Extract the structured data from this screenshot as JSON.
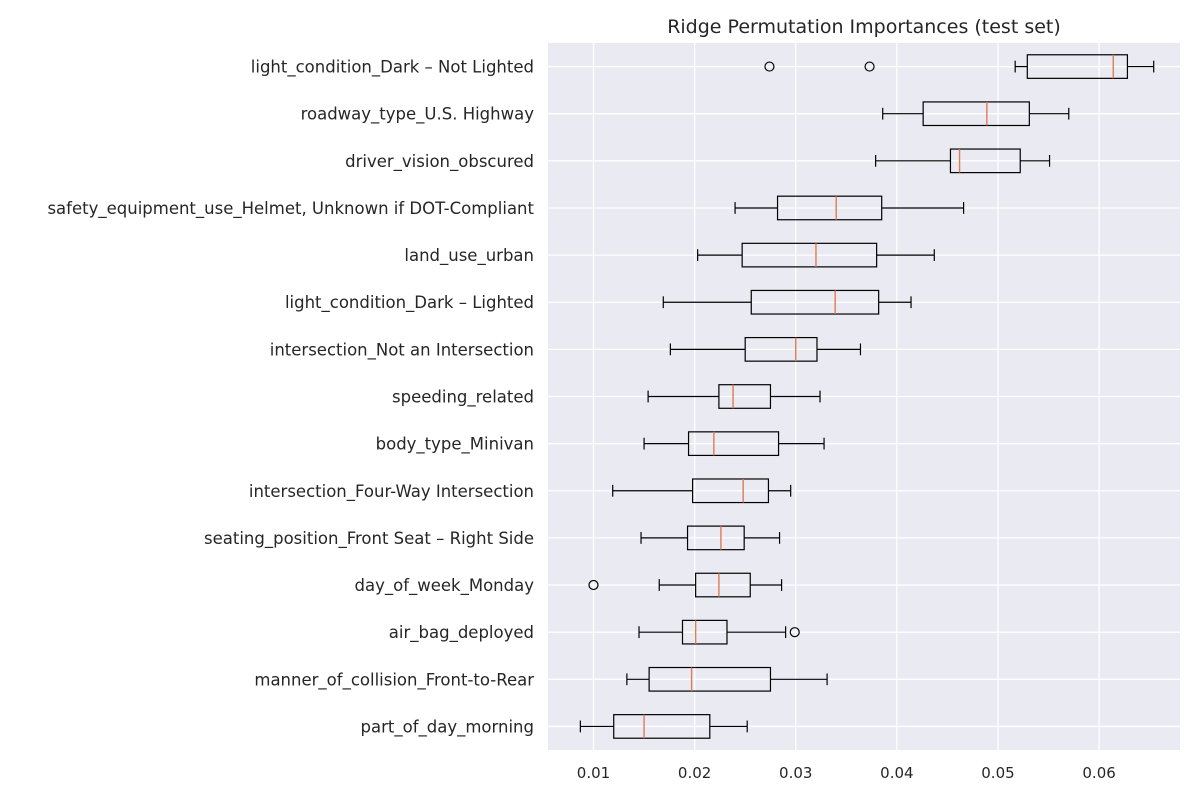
{
  "chart_data": {
    "type": "boxplot",
    "orientation": "horizontal",
    "title": "Ridge Permutation Importances (test set)",
    "xlabel": "",
    "ylabel": "",
    "xlim": [
      0.0055,
      0.068
    ],
    "xticks": [
      0.01,
      0.02,
      0.03,
      0.04,
      0.05,
      0.06
    ],
    "xtick_labels": [
      "0.01",
      "0.02",
      "0.03",
      "0.04",
      "0.05",
      "0.06"
    ],
    "grid": true,
    "style": "seaborn-darkgrid",
    "colors": {
      "axes_background": "#eaeaf2",
      "grid": "#ffffff",
      "box_edge": "#000000",
      "median": "#e07b54",
      "text": "#262626"
    },
    "categories": [
      "light_condition_Dark – Not Lighted",
      "roadway_type_U.S. Highway",
      "driver_vision_obscured",
      "safety_equipment_use_Helmet, Unknown if DOT-Compliant",
      "land_use_urban",
      "light_condition_Dark – Lighted",
      "intersection_Not an Intersection",
      "speeding_related",
      "body_type_Minivan",
      "intersection_Four-Way Intersection",
      "seating_position_Front Seat – Right Side",
      "day_of_week_Monday",
      "air_bag_deployed",
      "manner_of_collision_Front-to-Rear",
      "part_of_day_morning"
    ],
    "boxes": [
      {
        "whisker_low": 0.0517,
        "q1": 0.0529,
        "median": 0.0614,
        "q3": 0.0628,
        "whisker_high": 0.0654,
        "outliers": [
          0.0274,
          0.0373
        ]
      },
      {
        "whisker_low": 0.0386,
        "q1": 0.0426,
        "median": 0.0489,
        "q3": 0.0531,
        "whisker_high": 0.057,
        "outliers": []
      },
      {
        "whisker_low": 0.0379,
        "q1": 0.0453,
        "median": 0.0462,
        "q3": 0.0522,
        "whisker_high": 0.0551,
        "outliers": []
      },
      {
        "whisker_low": 0.024,
        "q1": 0.0282,
        "median": 0.034,
        "q3": 0.0385,
        "whisker_high": 0.0466,
        "outliers": []
      },
      {
        "whisker_low": 0.0203,
        "q1": 0.0247,
        "median": 0.032,
        "q3": 0.038,
        "whisker_high": 0.0437,
        "outliers": []
      },
      {
        "whisker_low": 0.0169,
        "q1": 0.0256,
        "median": 0.0339,
        "q3": 0.0382,
        "whisker_high": 0.0414,
        "outliers": []
      },
      {
        "whisker_low": 0.0176,
        "q1": 0.025,
        "median": 0.03,
        "q3": 0.0321,
        "whisker_high": 0.0364,
        "outliers": []
      },
      {
        "whisker_low": 0.0154,
        "q1": 0.0224,
        "median": 0.0238,
        "q3": 0.0275,
        "whisker_high": 0.0324,
        "outliers": []
      },
      {
        "whisker_low": 0.015,
        "q1": 0.0194,
        "median": 0.0219,
        "q3": 0.0283,
        "whisker_high": 0.0328,
        "outliers": []
      },
      {
        "whisker_low": 0.0119,
        "q1": 0.0198,
        "median": 0.0248,
        "q3": 0.0273,
        "whisker_high": 0.0295,
        "outliers": []
      },
      {
        "whisker_low": 0.0147,
        "q1": 0.0193,
        "median": 0.0226,
        "q3": 0.0249,
        "whisker_high": 0.0284,
        "outliers": []
      },
      {
        "whisker_low": 0.0165,
        "q1": 0.0201,
        "median": 0.0224,
        "q3": 0.0255,
        "whisker_high": 0.0286,
        "outliers": [
          0.01
        ]
      },
      {
        "whisker_low": 0.0145,
        "q1": 0.0188,
        "median": 0.0201,
        "q3": 0.0232,
        "whisker_high": 0.029,
        "outliers": [
          0.0299
        ]
      },
      {
        "whisker_low": 0.0133,
        "q1": 0.0155,
        "median": 0.0197,
        "q3": 0.0275,
        "whisker_high": 0.0331,
        "outliers": []
      },
      {
        "whisker_low": 0.0087,
        "q1": 0.012,
        "median": 0.015,
        "q3": 0.0215,
        "whisker_high": 0.0252,
        "outliers": []
      }
    ]
  }
}
